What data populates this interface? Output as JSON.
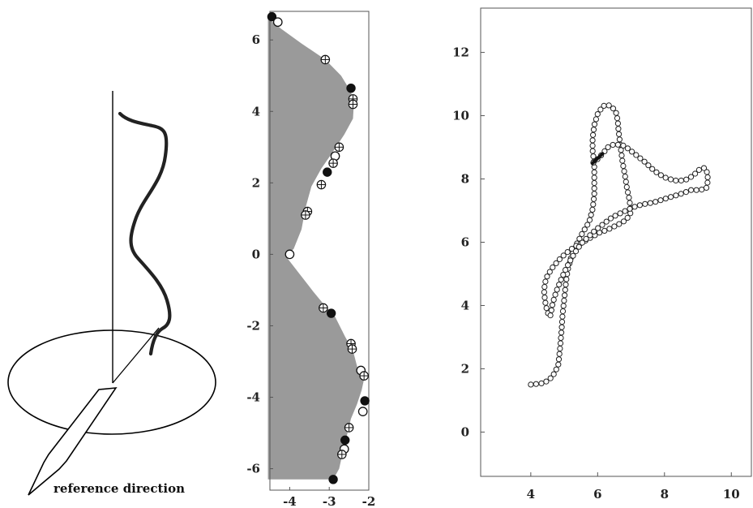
{
  "chart_data": [
    {
      "type": "diagram",
      "annotation": "reference direction"
    },
    {
      "type": "scatter",
      "xlim": [
        -4.5,
        -2
      ],
      "ylim": [
        -6.6,
        6.8
      ],
      "x_ticks": [
        "-4",
        "-3",
        "-2"
      ],
      "x_tick_values": [
        -4,
        -3,
        -2
      ],
      "y_ticks": [
        "-6",
        "-4",
        "-2",
        "0",
        "2",
        "4",
        "6"
      ],
      "y_tick_values": [
        -6,
        -4,
        -2,
        0,
        2,
        4,
        6
      ],
      "boundary": [
        [
          -4.55,
          6.6
        ],
        [
          -4.2,
          6.3
        ],
        [
          -3.7,
          5.9
        ],
        [
          -3.1,
          5.45
        ],
        [
          -2.7,
          5.0
        ],
        [
          -2.45,
          4.55
        ],
        [
          -2.38,
          4.2
        ],
        [
          -2.4,
          3.8
        ],
        [
          -2.62,
          3.35
        ],
        [
          -2.95,
          2.8
        ],
        [
          -3.2,
          2.4
        ],
        [
          -3.45,
          1.9
        ],
        [
          -3.6,
          1.3
        ],
        [
          -3.7,
          0.7
        ],
        [
          -3.9,
          0.15
        ],
        [
          -4.1,
          -0.05
        ],
        [
          -3.75,
          -0.55
        ],
        [
          -3.4,
          -1.05
        ],
        [
          -3.1,
          -1.45
        ],
        [
          -2.85,
          -1.75
        ],
        [
          -2.6,
          -2.3
        ],
        [
          -2.4,
          -2.7
        ],
        [
          -2.28,
          -3.2
        ],
        [
          -2.12,
          -3.5
        ],
        [
          -2.18,
          -3.8
        ],
        [
          -2.3,
          -4.2
        ],
        [
          -2.45,
          -4.6
        ],
        [
          -2.55,
          -5.05
        ],
        [
          -2.65,
          -5.5
        ],
        [
          -2.75,
          -6.0
        ],
        [
          -2.9,
          -6.3
        ]
      ],
      "series": [
        {
          "marker": "filled",
          "points": [
            [
              -4.45,
              6.65
            ],
            [
              -2.45,
              4.65
            ],
            [
              -3.05,
              2.3
            ],
            [
              -2.95,
              -1.65
            ],
            [
              -2.1,
              -4.1
            ],
            [
              -2.6,
              -5.2
            ],
            [
              -2.9,
              -6.3
            ]
          ]
        },
        {
          "marker": "open",
          "points": [
            [
              -4.3,
              6.5
            ],
            [
              -2.85,
              2.75
            ],
            [
              -4.0,
              0.0
            ],
            [
              -2.2,
              -3.25
            ],
            [
              -2.15,
              -4.4
            ],
            [
              -2.62,
              -5.45
            ]
          ]
        },
        {
          "marker": "cross",
          "points": [
            [
              -3.1,
              5.45
            ],
            [
              -2.4,
              4.35
            ],
            [
              -2.4,
              4.2
            ],
            [
              -2.75,
              3.0
            ],
            [
              -2.9,
              2.55
            ],
            [
              -3.2,
              1.95
            ],
            [
              -3.55,
              1.2
            ],
            [
              -3.6,
              1.1
            ],
            [
              -3.15,
              -1.5
            ],
            [
              -2.45,
              -2.5
            ],
            [
              -2.42,
              -2.65
            ],
            [
              -2.12,
              -3.4
            ],
            [
              -2.5,
              -4.85
            ],
            [
              -2.68,
              -5.6
            ]
          ]
        }
      ]
    },
    {
      "type": "line",
      "xlim": [
        2.5,
        10.6
      ],
      "ylim": [
        -1.4,
        13.4
      ],
      "x_ticks": [
        "4",
        "6",
        "8",
        "10"
      ],
      "x_tick_values": [
        4,
        6,
        8,
        10
      ],
      "y_ticks": [
        "0",
        "2",
        "4",
        "6",
        "8",
        "10",
        "12"
      ],
      "y_tick_values": [
        0,
        2,
        4,
        6,
        8,
        10,
        12
      ],
      "path": [
        [
          4.0,
          1.5
        ],
        [
          4.4,
          1.55
        ],
        [
          4.65,
          1.75
        ],
        [
          4.82,
          2.1
        ],
        [
          4.88,
          2.7
        ],
        [
          4.92,
          3.2
        ],
        [
          4.95,
          3.7
        ],
        [
          5.0,
          4.2
        ],
        [
          5.05,
          4.7
        ],
        [
          5.1,
          5.1
        ],
        [
          5.2,
          5.5
        ],
        [
          5.35,
          5.9
        ],
        [
          5.55,
          6.3
        ],
        [
          5.75,
          6.65
        ],
        [
          5.85,
          7.05
        ],
        [
          5.9,
          7.5
        ],
        [
          5.9,
          8.0
        ],
        [
          5.9,
          8.45
        ],
        [
          5.85,
          8.9
        ],
        [
          5.85,
          9.3
        ],
        [
          5.9,
          9.7
        ],
        [
          6.0,
          10.05
        ],
        [
          6.15,
          10.3
        ],
        [
          6.3,
          10.35
        ],
        [
          6.45,
          10.25
        ],
        [
          6.55,
          10.1
        ],
        [
          6.6,
          9.85
        ],
        [
          6.62,
          9.6
        ],
        [
          6.65,
          9.3
        ],
        [
          6.7,
          8.9
        ],
        [
          6.75,
          8.5
        ],
        [
          6.82,
          8.1
        ],
        [
          6.88,
          7.7
        ],
        [
          6.95,
          7.35
        ],
        [
          7.0,
          6.95
        ],
        [
          6.85,
          6.7
        ],
        [
          6.6,
          6.55
        ],
        [
          6.3,
          6.4
        ],
        [
          6.05,
          6.3
        ],
        [
          5.8,
          6.15
        ],
        [
          5.55,
          6.0
        ],
        [
          5.3,
          5.85
        ],
        [
          5.05,
          5.65
        ],
        [
          4.85,
          5.45
        ],
        [
          4.65,
          5.2
        ],
        [
          4.5,
          4.95
        ],
        [
          4.42,
          4.7
        ],
        [
          4.4,
          4.45
        ],
        [
          4.42,
          4.2
        ],
        [
          4.45,
          4.0
        ],
        [
          4.5,
          3.8
        ],
        [
          4.55,
          3.65
        ],
        [
          4.6,
          3.7
        ],
        [
          4.62,
          3.85
        ],
        [
          4.65,
          4.05
        ],
        [
          4.72,
          4.3
        ],
        [
          4.8,
          4.55
        ],
        [
          4.9,
          4.8
        ],
        [
          5.0,
          5.05
        ],
        [
          5.12,
          5.3
        ],
        [
          5.25,
          5.55
        ],
        [
          5.4,
          5.8
        ],
        [
          5.55,
          6.0
        ],
        [
          5.75,
          6.2
        ],
        [
          5.95,
          6.4
        ],
        [
          6.2,
          6.6
        ],
        [
          6.45,
          6.8
        ],
        [
          6.75,
          6.95
        ],
        [
          7.05,
          7.1
        ],
        [
          7.35,
          7.2
        ],
        [
          7.65,
          7.25
        ],
        [
          7.95,
          7.35
        ],
        [
          8.25,
          7.45
        ],
        [
          8.55,
          7.55
        ],
        [
          8.8,
          7.65
        ],
        [
          9.05,
          7.65
        ],
        [
          9.25,
          7.7
        ],
        [
          9.3,
          7.95
        ],
        [
          9.28,
          8.2
        ],
        [
          9.2,
          8.35
        ],
        [
          9.05,
          8.3
        ],
        [
          8.85,
          8.1
        ],
        [
          8.6,
          7.95
        ],
        [
          8.3,
          7.95
        ],
        [
          8.0,
          8.05
        ],
        [
          7.7,
          8.25
        ],
        [
          7.4,
          8.55
        ],
        [
          7.1,
          8.8
        ],
        [
          6.8,
          9.05
        ],
        [
          6.5,
          9.1
        ],
        [
          6.3,
          9.0
        ],
        [
          6.15,
          8.8
        ],
        [
          6.02,
          8.65
        ],
        [
          5.92,
          8.55
        ],
        [
          5.85,
          8.5
        ]
      ]
    }
  ]
}
